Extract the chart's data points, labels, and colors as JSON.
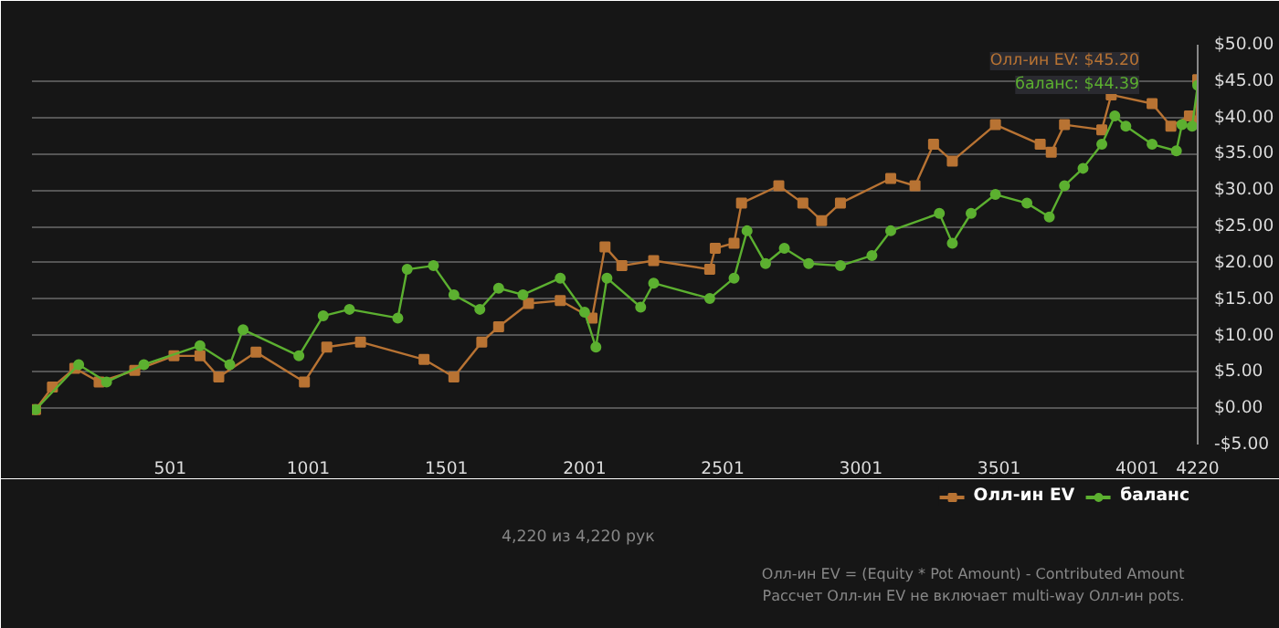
{
  "chart_data": {
    "type": "line",
    "x": [
      14,
      75,
      156,
      244,
      373,
      515,
      609,
      677,
      812,
      987,
      1068,
      1190,
      1420,
      1528,
      1629,
      1690,
      1798,
      1913,
      2028,
      2075,
      2136,
      2251,
      2454,
      2474,
      2542,
      2569,
      2704,
      2791,
      2859,
      2927,
      3109,
      3197,
      3264,
      3332,
      3488,
      3650,
      3690,
      3738,
      3873,
      3907,
      4055,
      4123,
      4190,
      4215,
      4220
    ],
    "series": [
      {
        "name": "Олл-ин EV",
        "color": "#b87333",
        "marker": "square",
        "values": [
          -0.2,
          2.9,
          5.5,
          3.6,
          5.2,
          7.2,
          7.2,
          4.3,
          7.7,
          3.6,
          8.4,
          9.1,
          6.7,
          4.3,
          9.1,
          11.2,
          14.4,
          14.8,
          12.4,
          22.2,
          19.6,
          20.3,
          19.1,
          22,
          22.7,
          28.2,
          30.6,
          28.2,
          25.8,
          28.2,
          31.6,
          30.6,
          36.3,
          34,
          39,
          36.3,
          35.2,
          39,
          38.3,
          43.1,
          41.9,
          38.8,
          40.2,
          39.5,
          45.2
        ]
      },
      {
        "name": "баланс",
        "color": "#5cb030",
        "marker": "circle",
        "x": [
          14,
          170,
          271,
          406,
          609,
          717,
          765,
          967,
          1055,
          1150,
          1325,
          1359,
          1454,
          1528,
          1622,
          1690,
          1778,
          1913,
          2001,
          2042,
          2082,
          2204,
          2251,
          2454,
          2542,
          2589,
          2656,
          2724,
          2812,
          2927,
          3041,
          3109,
          3285,
          3332,
          3400,
          3488,
          3602,
          3683,
          3738,
          3805,
          3873,
          3920,
          3960,
          4055,
          4143,
          4163,
          4200,
          4220
        ],
        "values": [
          -0.2,
          6,
          3.6,
          6,
          8.6,
          6,
          10.8,
          7.2,
          12.7,
          13.6,
          12.4,
          19.1,
          19.6,
          15.6,
          13.6,
          16.5,
          15.6,
          17.9,
          13.2,
          8.4,
          17.9,
          13.9,
          17.2,
          15.1,
          17.9,
          24.4,
          19.9,
          22,
          19.9,
          19.6,
          21,
          24.4,
          26.8,
          22.7,
          26.8,
          29.4,
          28.2,
          26.3,
          30.6,
          33,
          36.3,
          40.2,
          38.8,
          36.3,
          35.4,
          39,
          38.8,
          44.4
        ]
      }
    ],
    "xlim": [
      1,
      4220
    ],
    "xticks": [
      501,
      1001,
      1501,
      2001,
      2501,
      3001,
      3501,
      4001,
      4220
    ],
    "ylim": [
      -5,
      50
    ],
    "yticks": [
      {
        "value": -5,
        "label": "-$5.00"
      },
      {
        "value": 0,
        "label": "$0.00"
      },
      {
        "value": 5,
        "label": "$5.00"
      },
      {
        "value": 10,
        "label": "$10.00"
      },
      {
        "value": 15,
        "label": "$15.00"
      },
      {
        "value": 20,
        "label": "$20.00"
      },
      {
        "value": 25,
        "label": "$25.00"
      },
      {
        "value": 30,
        "label": "$30.00"
      },
      {
        "value": 35,
        "label": "$35.00"
      },
      {
        "value": 40,
        "label": "$40.00"
      },
      {
        "value": 45,
        "label": "$45.00"
      },
      {
        "value": 50,
        "label": "$50.00"
      }
    ],
    "grid": "y",
    "legend": "bottom right",
    "line_style": "solid",
    "annotations": [
      "Олл-ин EV: $45.20",
      "баланс: $44.39",
      "4,220 из 4,220 рук",
      "Олл-ин EV = (Equity * Pot Amount) - Contributed Amount",
      "Рассчет Олл-ин EV не включает multi-way Олл-ин pots."
    ]
  }
}
